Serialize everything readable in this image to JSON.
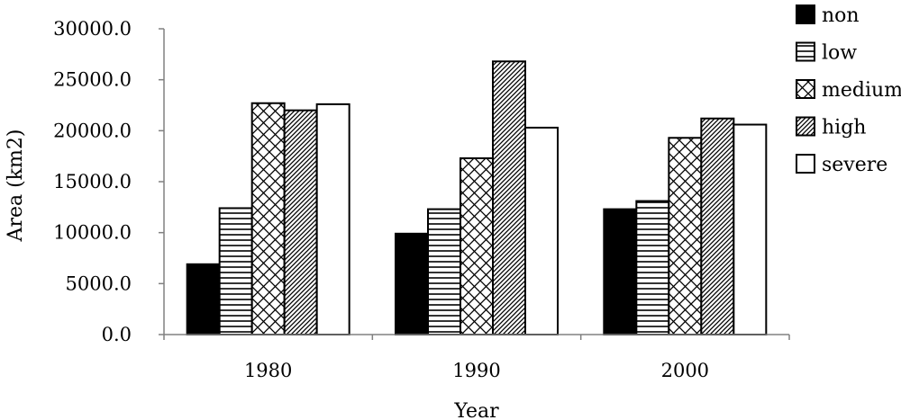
{
  "chart_data": {
    "type": "bar",
    "title": "",
    "xlabel": "Year",
    "ylabel": "Area (km2)",
    "categories": [
      "1980",
      "1990",
      "2000"
    ],
    "ylim": [
      0,
      30000
    ],
    "yticks": [
      0,
      5000,
      10000,
      15000,
      20000,
      25000,
      30000
    ],
    "ytick_labels": [
      "0.0",
      "5000.0",
      "10000.0",
      "15000.0",
      "20000.0",
      "25000.0",
      "30000.0"
    ],
    "legend_position": "top-right",
    "grid": false,
    "series": [
      {
        "name": "non",
        "fill": "solid-black",
        "values": [
          6900,
          9900,
          12300
        ]
      },
      {
        "name": "low",
        "fill": "horizontal-lines",
        "values": [
          12400,
          12300,
          13100
        ]
      },
      {
        "name": "medium",
        "fill": "crosshatch",
        "values": [
          22700,
          17300,
          19300
        ]
      },
      {
        "name": "high",
        "fill": "diagonal-lines",
        "values": [
          22000,
          26800,
          21200
        ]
      },
      {
        "name": "severe",
        "fill": "white",
        "values": [
          22600,
          20300,
          20600
        ]
      }
    ]
  }
}
